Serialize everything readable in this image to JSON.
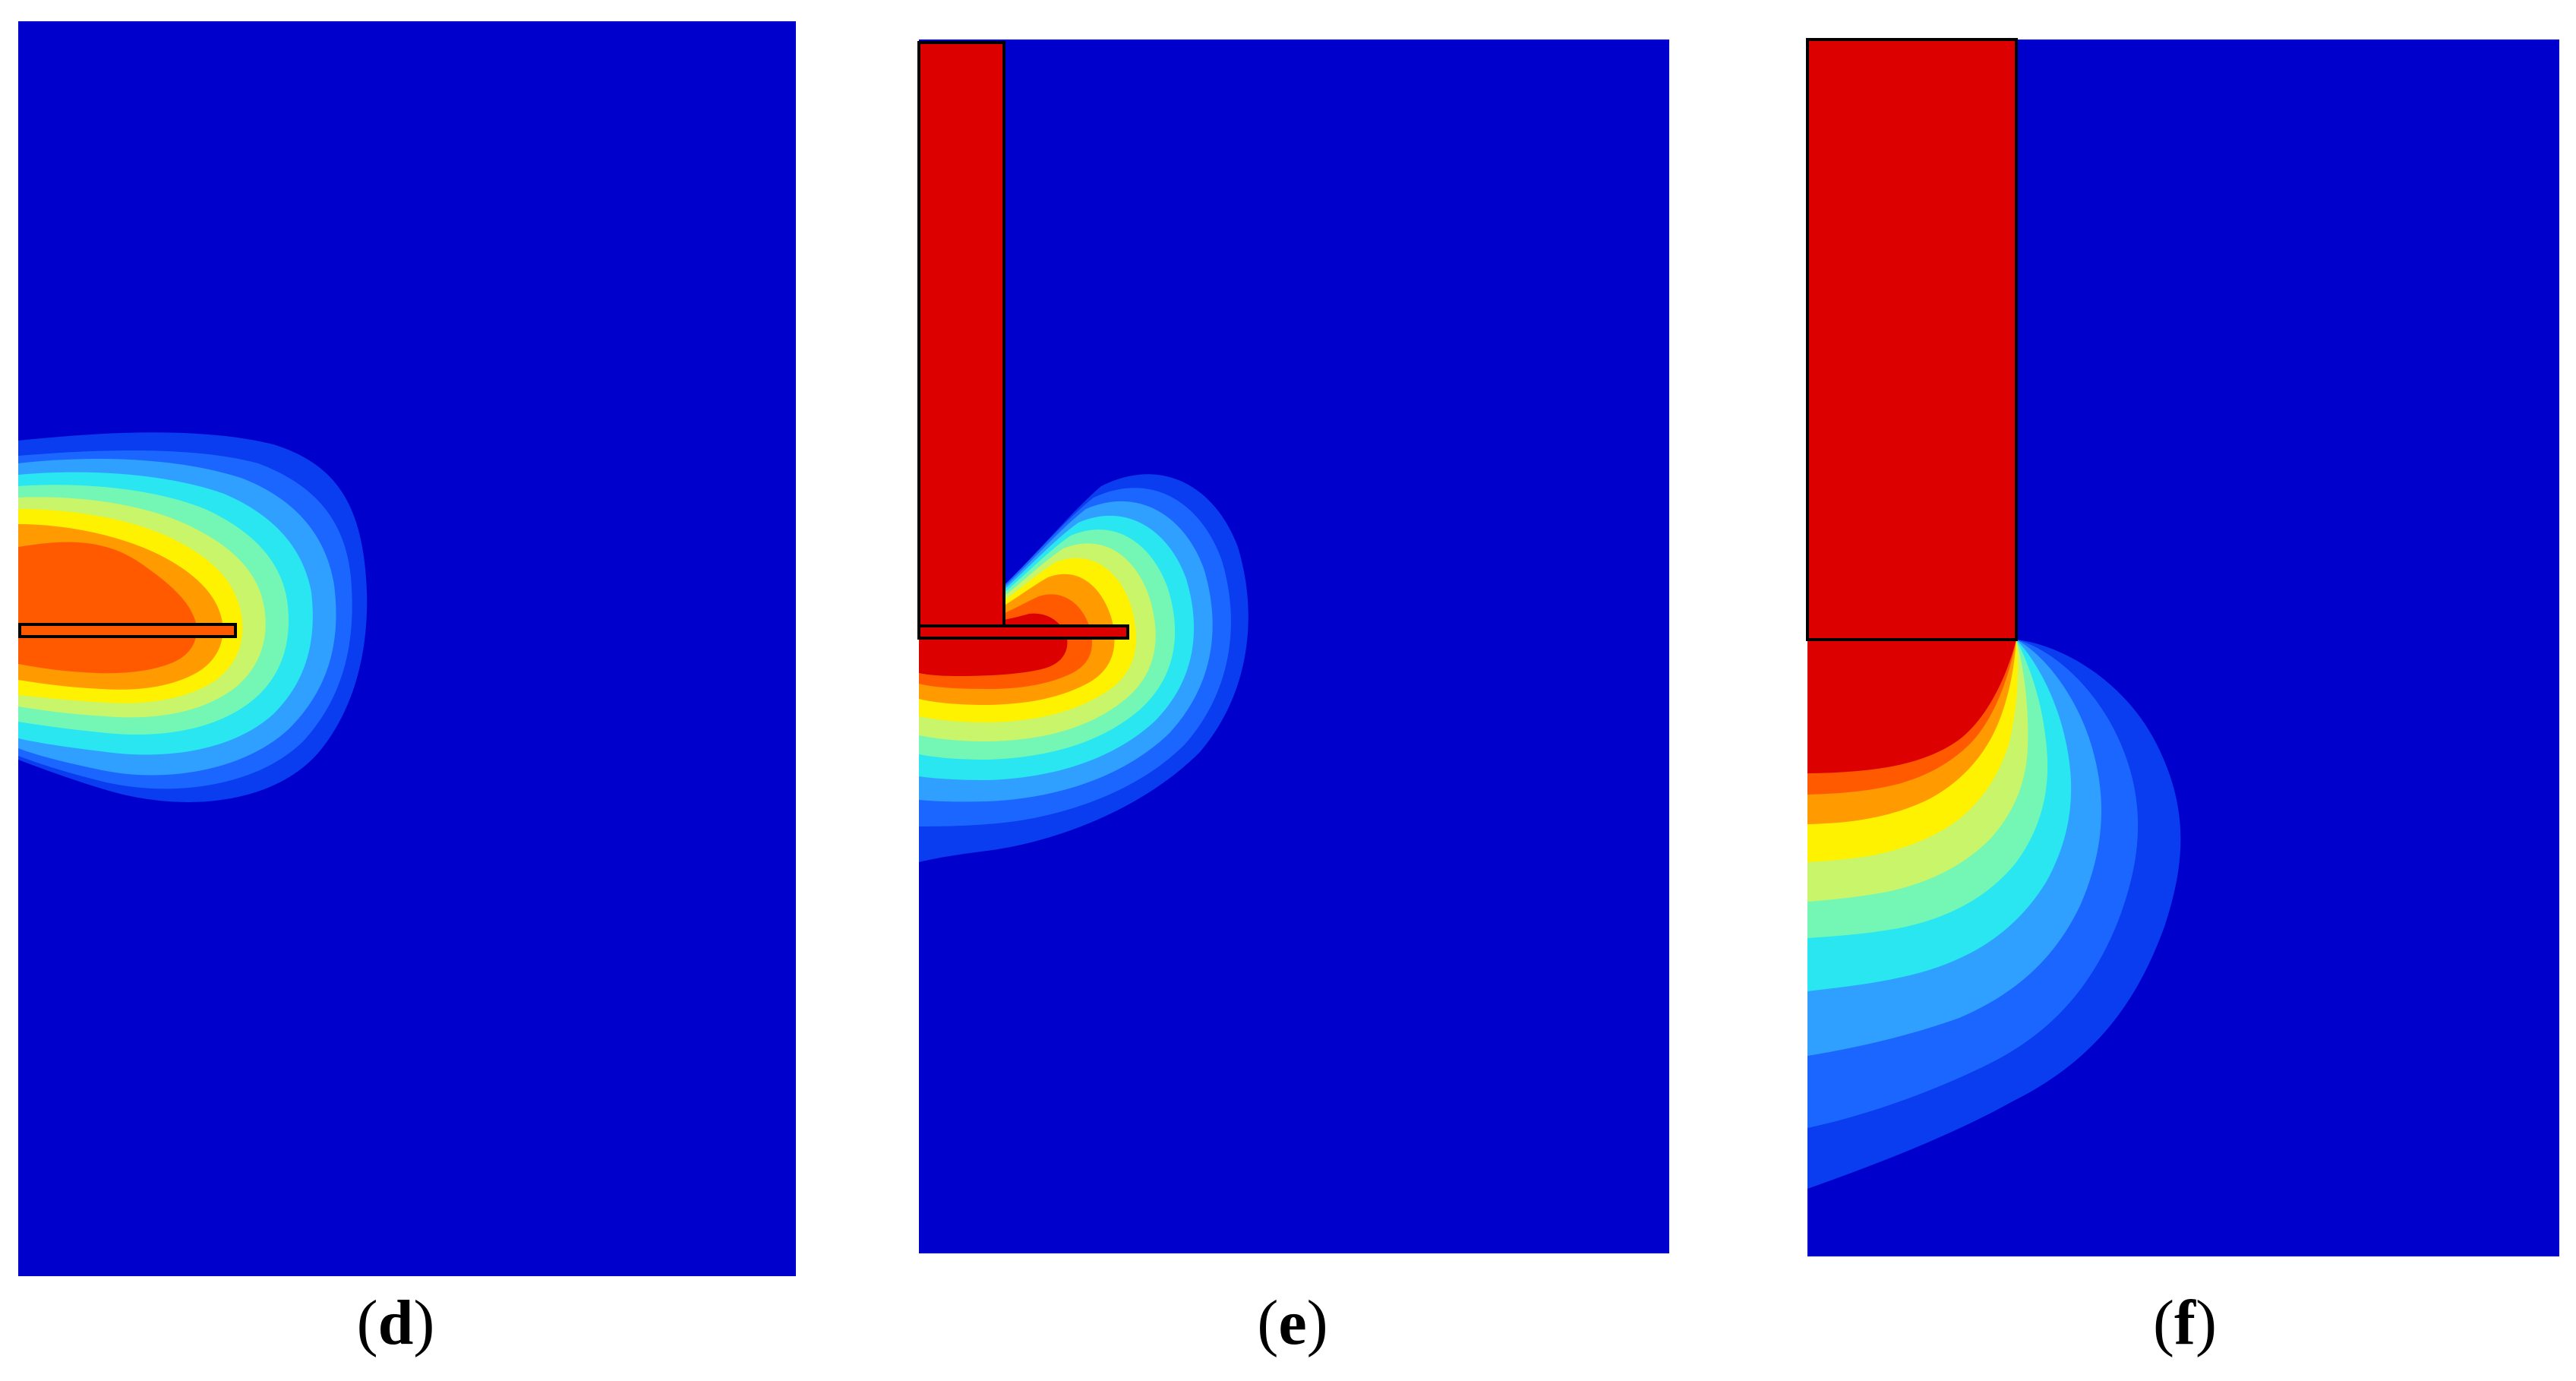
{
  "panels": [
    {
      "id": "d",
      "open": "(",
      "letter": "d",
      "close": ")"
    },
    {
      "id": "e",
      "open": "(",
      "letter": "e",
      "close": ")"
    },
    {
      "id": "f",
      "open": "(",
      "letter": "f",
      "close": ")"
    }
  ],
  "colors": {
    "background": "#0000CC",
    "blue_light": "#0A3CF0",
    "blue_mid": "#1A66FF",
    "blue_sky": "#2FA0FF",
    "cyan": "#29E6F0",
    "aqua_green": "#74F7B5",
    "yellow_green": "#C8F56A",
    "yellow": "#FFF200",
    "orange": "#FF9A00",
    "orange_red": "#FF5A00",
    "red": "#DD0000",
    "outline": "#000000"
  }
}
